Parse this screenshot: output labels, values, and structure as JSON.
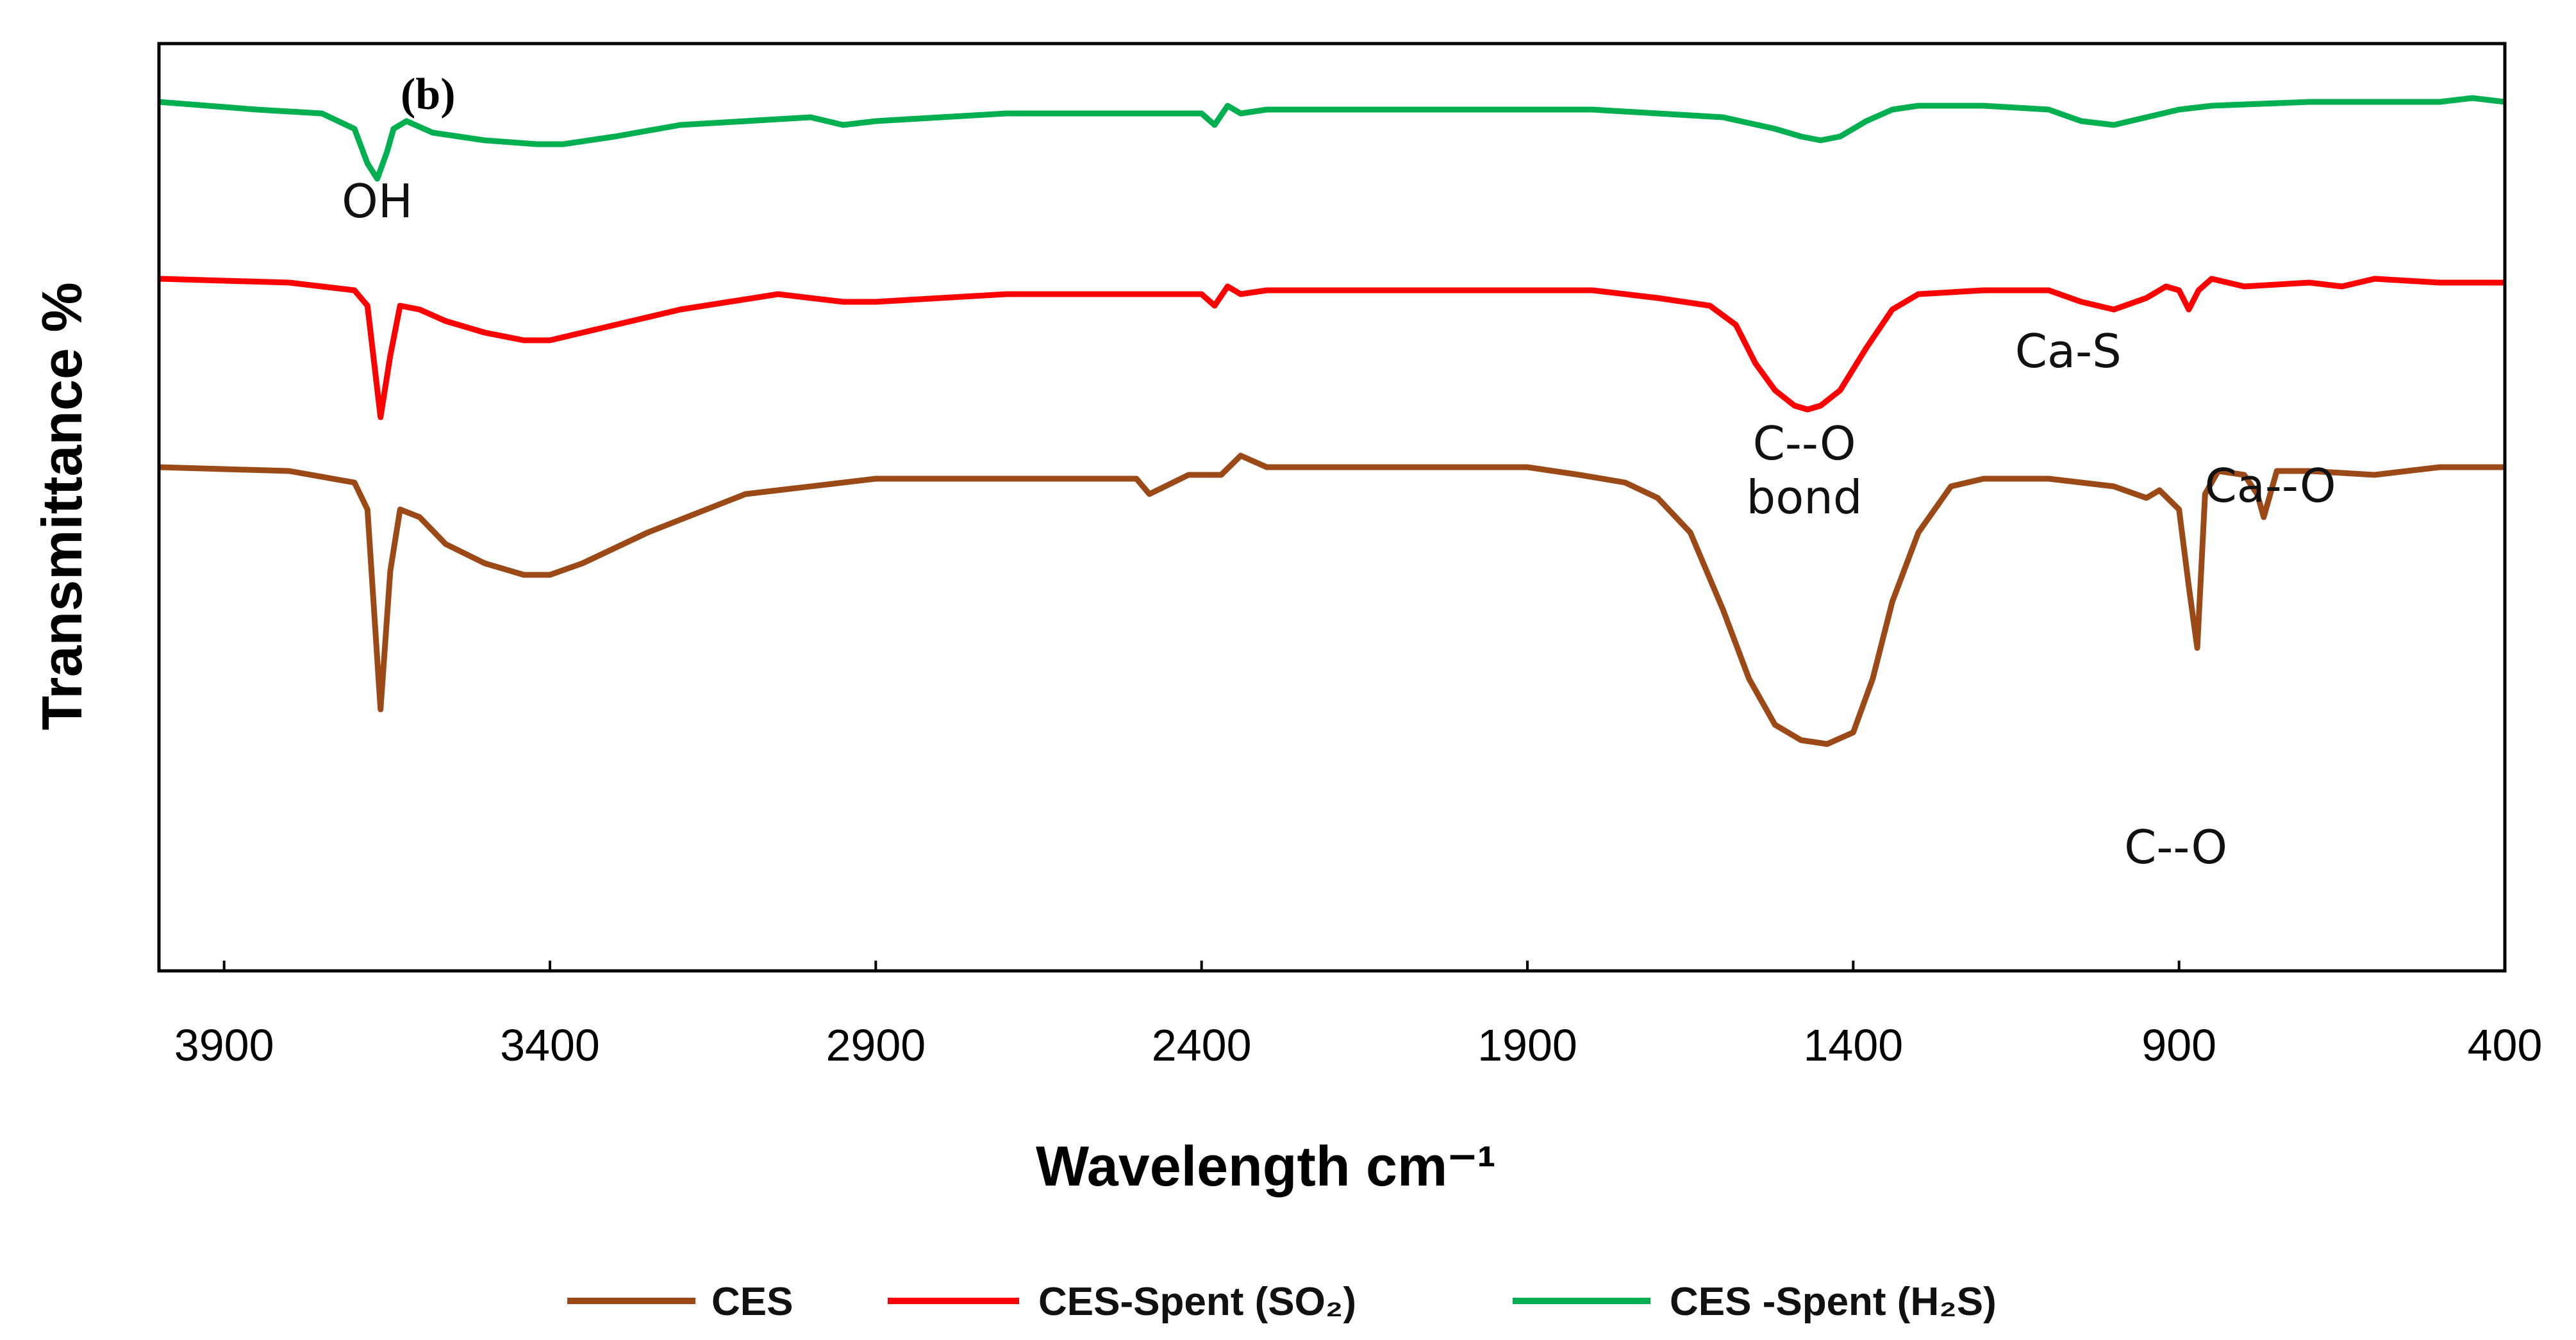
{
  "chart_data": {
    "type": "line",
    "panel_label": "(b)",
    "xlabel": "Wavelength cm⁻¹",
    "ylabel": "Transmittance %",
    "xlim": [
      4000,
      400
    ],
    "ylim": [
      0,
      100
    ],
    "x_ticks": [
      3900,
      3400,
      2900,
      2400,
      1900,
      1400,
      900,
      400
    ],
    "x_tick_labels": [
      "3900",
      "3400",
      "2900",
      "2400",
      "1900",
      "1400",
      "900",
      "400"
    ],
    "grid": false,
    "legend_position": "bottom",
    "series": [
      {
        "name": "CES",
        "color": "#9B4A17",
        "x": [
          4000,
          3800,
          3700,
          3680,
          3660,
          3645,
          3630,
          3600,
          3560,
          3500,
          3440,
          3400,
          3350,
          3250,
          3100,
          2900,
          2500,
          2480,
          2420,
          2370,
          2340,
          2300,
          1900,
          1820,
          1750,
          1700,
          1650,
          1600,
          1560,
          1520,
          1480,
          1440,
          1400,
          1370,
          1340,
          1300,
          1250,
          1200,
          1100,
          1000,
          950,
          930,
          900,
          885,
          872,
          860,
          840,
          800,
          780,
          770,
          760,
          750,
          700,
          600,
          500,
          400
        ],
        "y": [
          65.5,
          65.0,
          63.5,
          60.0,
          34.0,
          52.0,
          60.0,
          59.0,
          55.5,
          53.0,
          51.5,
          51.5,
          53.0,
          57.0,
          62.0,
          64.0,
          64.0,
          62.0,
          64.5,
          64.5,
          67.0,
          65.5,
          65.5,
          64.5,
          63.5,
          61.5,
          57.0,
          47.0,
          38.0,
          32.0,
          30.0,
          29.5,
          31.0,
          38.0,
          48.0,
          57.0,
          63.0,
          64.0,
          64.0,
          63.0,
          61.5,
          62.5,
          60.0,
          50.0,
          42.0,
          62.0,
          65.0,
          64.5,
          62.0,
          59.0,
          62.0,
          65.0,
          65.0,
          64.5,
          65.5,
          65.5
        ]
      },
      {
        "name": "CES-Spent (SO₂)",
        "color": "#FF0000",
        "x": [
          4000,
          3800,
          3700,
          3680,
          3660,
          3645,
          3630,
          3600,
          3560,
          3500,
          3440,
          3400,
          3350,
          3200,
          3050,
          2950,
          2900,
          2700,
          2400,
          2380,
          2360,
          2340,
          2300,
          2000,
          1800,
          1700,
          1620,
          1580,
          1550,
          1520,
          1490,
          1470,
          1450,
          1420,
          1380,
          1340,
          1300,
          1200,
          1100,
          1050,
          1000,
          950,
          920,
          900,
          885,
          870,
          850,
          800,
          700,
          650,
          600,
          500,
          400
        ],
        "y": [
          90.0,
          89.5,
          88.5,
          86.5,
          72.0,
          80.0,
          86.5,
          86.0,
          84.5,
          83.0,
          82.0,
          82.0,
          83.0,
          86.0,
          88.0,
          87.0,
          87.0,
          88.0,
          88.0,
          86.5,
          89.0,
          88.0,
          88.5,
          88.5,
          88.5,
          87.5,
          86.5,
          84.0,
          79.0,
          75.5,
          73.5,
          73.0,
          73.5,
          75.5,
          81.0,
          86.0,
          88.0,
          88.5,
          88.5,
          87.0,
          86.0,
          87.5,
          89.0,
          88.5,
          86.0,
          88.5,
          90.0,
          89.0,
          89.5,
          89.0,
          90.0,
          89.5,
          89.5
        ]
      },
      {
        "name": "CES -Spent (H₂S)",
        "color": "#00B050",
        "x": [
          4000,
          3850,
          3750,
          3700,
          3680,
          3665,
          3650,
          3640,
          3620,
          3580,
          3500,
          3420,
          3380,
          3300,
          3200,
          3000,
          2950,
          2900,
          2700,
          2400,
          2380,
          2360,
          2340,
          2300,
          2000,
          1800,
          1700,
          1600,
          1520,
          1480,
          1450,
          1420,
          1380,
          1340,
          1300,
          1200,
          1100,
          1050,
          1000,
          950,
          900,
          850,
          700,
          500,
          450,
          400
        ],
        "y": [
          113.0,
          112.0,
          111.5,
          109.5,
          105.0,
          103.0,
          106.5,
          109.5,
          110.5,
          109.0,
          108.0,
          107.5,
          107.5,
          108.5,
          110.0,
          111.0,
          110.0,
          110.5,
          111.5,
          111.5,
          110.0,
          112.5,
          111.5,
          112.0,
          112.0,
          112.0,
          111.5,
          111.0,
          109.5,
          108.5,
          108.0,
          108.5,
          110.5,
          112.0,
          112.5,
          112.5,
          112.0,
          110.5,
          110.0,
          111.0,
          112.0,
          112.5,
          113.0,
          113.0,
          113.5,
          113.0
        ]
      }
    ],
    "annotations": [
      {
        "text": "OH",
        "x": 3665,
        "y": 98
      },
      {
        "text": "Ca-S",
        "x": 1070,
        "y": 78.5
      },
      {
        "text": "C--O",
        "x": 1475,
        "y": 66.5
      },
      {
        "text": "bond",
        "x": 1475,
        "y": 59.5
      },
      {
        "text": "Ca--O",
        "x": 760,
        "y": 61
      },
      {
        "text": "C--O",
        "x": 905,
        "y": 14
      }
    ]
  }
}
